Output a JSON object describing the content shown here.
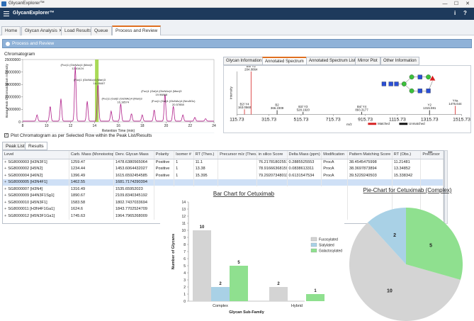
{
  "os_window": {
    "title": "GlycanExplorer™",
    "controls": [
      "—",
      "☐",
      "✕"
    ]
  },
  "app_bar": {
    "title": "GlycanExplorer™",
    "info_icon": "i",
    "help_icon": "?"
  },
  "tabs": [
    {
      "label": "Home",
      "closable": false,
      "active": false
    },
    {
      "label": "Glycan Analysis",
      "closable": true,
      "active": false
    },
    {
      "label": "Load Results",
      "closable": false,
      "active": false
    },
    {
      "label": "Queue",
      "closable": false,
      "active": false
    },
    {
      "label": "Process and Review",
      "closable": false,
      "active": true
    }
  ],
  "panel_header": "Process and Review",
  "chromatogram": {
    "title": "Chromatogram",
    "ylabel": "Base Peak Chromatogram Intensity",
    "xlabel": "Retention Time (min)",
    "y_ticks": [
      "25000000",
      "20000000",
      "15000000",
      "10000000",
      "5000000",
      "0"
    ],
    "x_ticks": [
      "8",
      "10",
      "12",
      "14",
      "16",
      "18",
      "20",
      "22",
      "24"
    ],
    "xlim": [
      8,
      24
    ],
    "ylim": [
      0,
      25000000
    ],
    "highlight_x": 14.2,
    "annotations": [
      {
        "text": "(Fuc)1 (GlcNAc)4 (Man)3",
        "x": 12.5,
        "y": 22500000
      },
      {
        "text": "12.41424",
        "x": 12.6,
        "y": 21000000
      },
      {
        "text": "(Fuc)1 (GlcNAc)4 (Man)3",
        "x": 13.6,
        "y": 16500000
      },
      {
        "text": "14.28407",
        "x": 14.4,
        "y": 15000000
      },
      {
        "text": "(Fuc)1 (Gal)2 (GlcNAc)4 (Man)3",
        "x": 16.3,
        "y": 9000000
      },
      {
        "text": "16.18574",
        "x": 16.4,
        "y": 7500000
      },
      {
        "text": "(Fuc)1 (Gal)4 (GlcNAc)4 (Man)3",
        "x": 19.6,
        "y": 12000000
      },
      {
        "text": "19.96868",
        "x": 19.6,
        "y": 10500000
      },
      {
        "text": "(Fuc)1 (Gal)4 (GlcNAc)4 (Neu5Gc)",
        "x": 20.6,
        "y": 8000000
      },
      {
        "text": "20.57858",
        "x": 21.0,
        "y": 6500000
      }
    ]
  },
  "plot_checkbox": {
    "checked": true,
    "label": "Plot Chromatogram as per Selected Row within the Peak List/Results"
  },
  "spectrum_tabs": [
    {
      "label": "Glycan Information",
      "active": false
    },
    {
      "label": "Annotated Spectrum",
      "active": true
    },
    {
      "label": "Annotated Spectrum List",
      "active": false
    },
    {
      "label": "Mirror Plot",
      "active": false
    },
    {
      "label": "Other Information",
      "active": false
    }
  ],
  "spectrum": {
    "ylabel": "Intensity",
    "xlabel": "m/z",
    "x_ticks": [
      "115.73",
      "315.73",
      "515.73",
      "715.73",
      "915.73",
      "1115.73",
      "1315.73",
      "1515.73"
    ],
    "xlim": [
      115.73,
      1515.73
    ],
    "peaks": [
      {
        "label": "B4/ Y2",
        "value": "204.0864",
        "mz": 204.09,
        "intensity": 1.0,
        "matched": true
      },
      {
        "label": "B2/ Y4",
        "value": "163.0560",
        "mz": 163.06,
        "intensity": 0.12,
        "matched": true
      },
      {
        "label": "B2",
        "value": "366.2309",
        "mz": 366.23,
        "intensity": 0.1,
        "matched": false
      },
      {
        "label": "B3/ Y3",
        "value": "528.1920",
        "mz": 528.19,
        "intensity": 0.06,
        "matched": false
      },
      {
        "label": "B4/ Y4",
        "value": "893.3177",
        "mz": 893.32,
        "intensity": 0.06,
        "matched": false
      },
      {
        "label": "Y2",
        "value": "1315.591",
        "mz": 1315.59,
        "intensity": 0.1,
        "matched": false
      },
      {
        "label": "Y4a",
        "value": "1475.644",
        "mz": 1475.64,
        "intensity": 0.2,
        "matched": true
      }
    ],
    "legend": [
      {
        "label": "Matched",
        "color": "#d62020"
      },
      {
        "label": "Unmatched",
        "color": "#111111"
      }
    ]
  },
  "result_tabs": [
    {
      "label": "Peak List",
      "active": false
    },
    {
      "label": "Results",
      "active": true
    }
  ],
  "results_table": {
    "columns": [
      "Level",
      "Carb. Mass (Monoisotopic)",
      "Derv. Glycan Mass",
      "Polarity",
      "Isomer #",
      "RT (Theo.)",
      "Precursor m/z (Theo.)",
      "in silico Score",
      "Delta Mass (ppm)",
      "Modification",
      "Pattern Matching Score",
      "RT (Obs.)",
      "Precursor"
    ],
    "rows": [
      [
        "SG8000003 [H3N3F1]",
        "1259.47",
        "1478.6380565064",
        "Positive",
        "1",
        "11.1",
        "",
        "76.21781802551",
        "0.2885525553",
        "ProcA",
        "38.4545475998",
        "11.21481",
        ""
      ],
      [
        "SG8000002 [H5N2]",
        "1234.44",
        "1453.6064432027",
        "Positive",
        "1",
        "13.38",
        "",
        "78.91666368159",
        "0.0838613311",
        "ProcA",
        "38.3697873894",
        "13.34852",
        ""
      ],
      [
        "SG8000004 [H6N2]",
        "1396.49",
        "1615.6592454585",
        "Positive",
        "1",
        "15.395",
        "",
        "79.29207348011",
        "0.6131547534",
        "ProcA",
        "39.5229240503",
        "15.338342",
        ""
      ],
      [
        "SG8000005 [H3N4F1]",
        "1462.55",
        "1681.7174290394",
        "",
        "",
        "",
        "",
        "",
        "",
        "",
        "",
        "",
        ""
      ],
      [
        "SG8000007 [H3N4]",
        "1316.49",
        "1535.65952023",
        "",
        "",
        "",
        "",
        "",
        "",
        "",
        "",
        "",
        ""
      ],
      [
        "SG8000009 [H4N3F1Sg1]",
        "1890.67",
        "2109.8340345192",
        "",
        "",
        "",
        "",
        "",
        "",
        "",
        "",
        "",
        ""
      ],
      [
        "SG8000010 [H5N3F1]",
        "1583.58",
        "1802.7437033694",
        "",
        "",
        "",
        "",
        "",
        "",
        "",
        "",
        "",
        ""
      ],
      [
        "SG8000011 [H3N4F1Ga1]",
        "1624.6",
        "1843.7702524709",
        "",
        "",
        "",
        "",
        "",
        "",
        "",
        "",
        "",
        ""
      ],
      [
        "SG8000012 [H5N3F1Ga1]",
        "1745.63",
        "1964.7965268009",
        "",
        "",
        "",
        "",
        "",
        "",
        "",
        "",
        "",
        ""
      ]
    ],
    "selected_row": 3,
    "more_icon": "•••"
  },
  "bar_chart": {
    "chart_data": {
      "type": "bar",
      "title": "Bar Chart for Cetuximab",
      "xlabel": "Glycan Sub-Family",
      "ylabel": "Number of Glycans",
      "categories": [
        "Complex",
        "Hybrid"
      ],
      "series": [
        {
          "name": "Fucosylated",
          "values": [
            10,
            2
          ],
          "color": "#d4d4d4"
        },
        {
          "name": "Sialylated",
          "values": [
            2,
            0
          ],
          "color": "#a9d1e6"
        },
        {
          "name": "Galactosylated",
          "values": [
            5,
            1
          ],
          "color": "#8fe08f"
        }
      ],
      "y_ticks": [
        "0",
        "1",
        "2",
        "3",
        "4",
        "5",
        "6",
        "7",
        "8",
        "9",
        "10",
        "11",
        "12",
        "13",
        "14"
      ],
      "ylim": [
        0,
        14
      ],
      "legend": "right"
    }
  },
  "pie_chart": {
    "chart_data": {
      "type": "pie",
      "title": "Pie-Chart for Cetuximab (Complex)",
      "labels": [
        "Fucosylated",
        "Sialylated",
        "Galactosylated"
      ],
      "values": [
        10,
        2,
        5
      ],
      "value_labels": [
        "10",
        "2",
        "5"
      ],
      "colors": [
        "#d4d4d4",
        "#a9d1e6",
        "#8fe08f"
      ]
    }
  }
}
